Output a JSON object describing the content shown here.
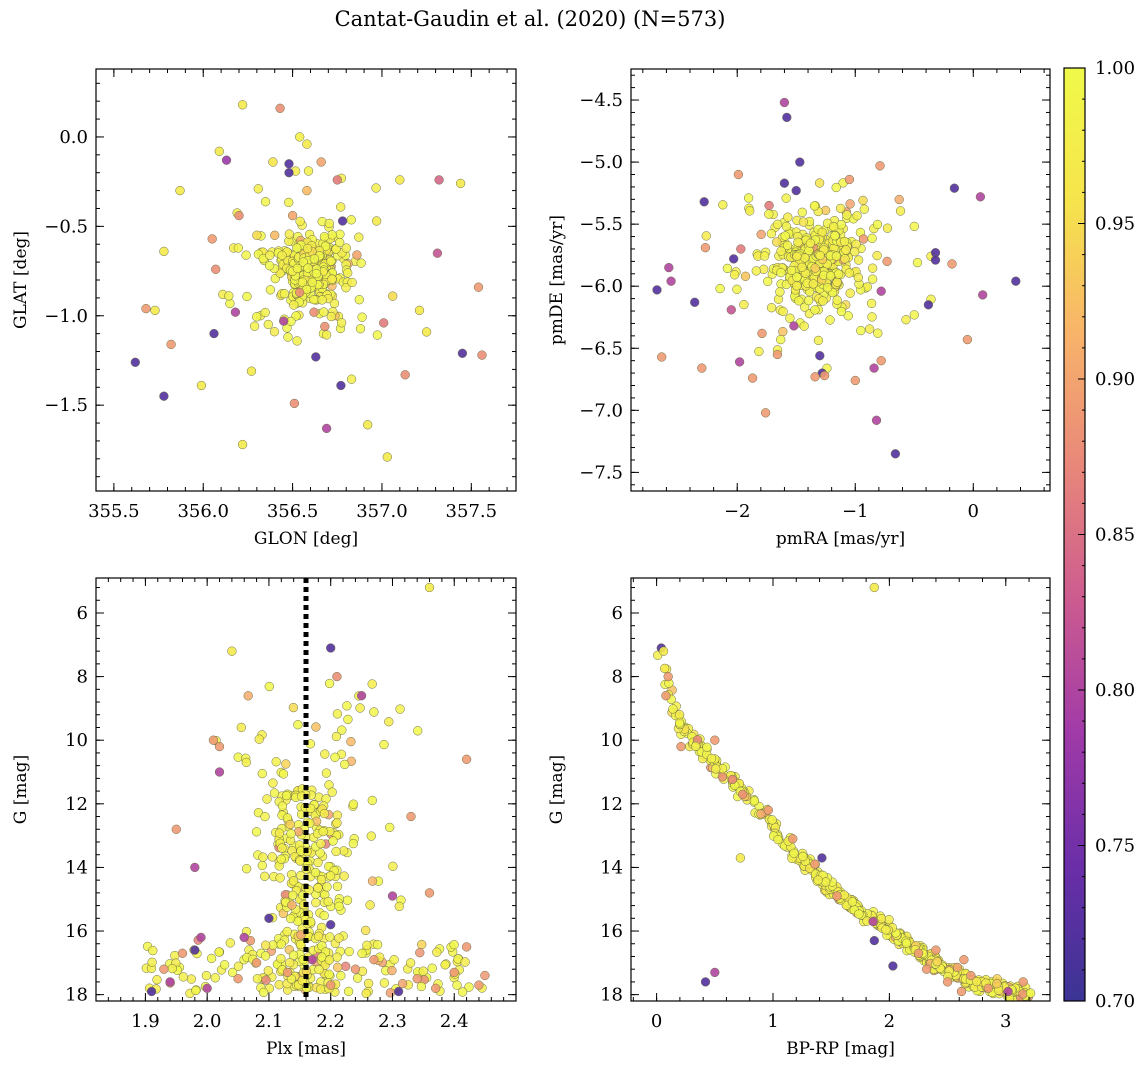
{
  "figure": {
    "title": "Cantat-Gaudin et al. (2020) (N=573)"
  },
  "colorbar": {
    "min": 0.7,
    "max": 1.0,
    "ticks": [
      0.7,
      0.75,
      0.8,
      0.85,
      0.9,
      0.95,
      1.0
    ],
    "tick_labels": [
      "0.70",
      "0.75",
      "0.80",
      "0.85",
      "0.90",
      "0.95",
      "1.00"
    ],
    "colormap": "plasma",
    "stops": [
      "#3b3494",
      "#6a2ea8",
      "#a03aa8",
      "#cc5b90",
      "#e8867a",
      "#f8b36a",
      "#f6e44c",
      "#f0f94a"
    ]
  },
  "colors": {
    "dot_edge": "#6e6e46",
    "axis": "#000000",
    "parallax_line": "#000000"
  },
  "chart_data": [
    {
      "id": "glon-glat",
      "type": "scatter",
      "title": "",
      "xlabel": "GLON [deg]",
      "ylabel": "GLAT [deg]",
      "xlim": [
        355.4,
        357.75
      ],
      "ylim": [
        -1.98,
        0.38
      ],
      "invert_y": false,
      "xticks": [
        355.5,
        356.0,
        356.5,
        357.0,
        357.5
      ],
      "xtick_labels": [
        "355.5",
        "356.0",
        "356.5",
        "357.0",
        "357.5"
      ],
      "yticks": [
        0.0,
        -0.5,
        -1.0,
        -1.5
      ],
      "ytick_labels": [
        "0.0",
        "−0.5",
        "−1.0",
        "−1.5"
      ],
      "center": [
        356.6,
        -0.75
      ],
      "spread_core": [
        0.1,
        0.12
      ],
      "spread_halo": [
        0.3,
        0.3
      ],
      "points": [
        [
          356.22,
          0.18,
          0.97
        ],
        [
          356.43,
          0.16,
          0.88
        ],
        [
          356.54,
          0.0,
          0.98
        ],
        [
          356.09,
          -0.08,
          0.97
        ],
        [
          356.58,
          -0.04,
          0.97
        ],
        [
          356.13,
          -0.13,
          0.78
        ],
        [
          356.39,
          -0.14,
          0.96
        ],
        [
          356.48,
          -0.15,
          0.72
        ],
        [
          356.48,
          -0.2,
          0.72
        ],
        [
          356.66,
          -0.14,
          0.9
        ],
        [
          357.32,
          -0.24,
          0.84
        ],
        [
          355.87,
          -0.3,
          0.97
        ],
        [
          356.58,
          -0.3,
          0.92
        ],
        [
          356.75,
          -0.24,
          0.86
        ],
        [
          357.1,
          -0.24,
          0.97
        ],
        [
          357.44,
          -0.26,
          0.97
        ],
        [
          355.78,
          -0.64,
          0.97
        ],
        [
          356.4,
          -0.55,
          0.92
        ],
        [
          356.78,
          -0.47,
          0.72
        ],
        [
          356.97,
          -0.47,
          0.97
        ],
        [
          357.31,
          -0.65,
          0.82
        ],
        [
          356.05,
          -0.57,
          0.89
        ],
        [
          356.07,
          -0.74,
          0.88
        ],
        [
          357.54,
          -0.84,
          0.89
        ],
        [
          355.68,
          -0.96,
          0.89
        ],
        [
          355.73,
          -0.97,
          0.97
        ],
        [
          355.82,
          -1.16,
          0.89
        ],
        [
          356.06,
          -1.1,
          0.72
        ],
        [
          355.62,
          -1.26,
          0.72
        ],
        [
          355.78,
          -1.45,
          0.72
        ],
        [
          356.63,
          -1.23,
          0.72
        ],
        [
          356.77,
          -1.39,
          0.72
        ],
        [
          357.45,
          -1.21,
          0.72
        ],
        [
          357.56,
          -1.22,
          0.88
        ],
        [
          357.13,
          -1.33,
          0.88
        ],
        [
          356.69,
          -1.63,
          0.8
        ],
        [
          356.22,
          -1.72,
          0.97
        ],
        [
          357.03,
          -1.79,
          0.97
        ],
        [
          356.92,
          -1.61,
          0.97
        ],
        [
          356.51,
          -1.49,
          0.88
        ],
        [
          356.27,
          -1.31,
          0.97
        ],
        [
          355.99,
          -1.39,
          0.97
        ],
        [
          357.01,
          -1.04,
          0.86
        ],
        [
          356.68,
          -1.06,
          0.88
        ],
        [
          356.45,
          -1.03,
          0.8
        ],
        [
          356.18,
          -0.98,
          0.8
        ],
        [
          356.54,
          -0.87,
          0.88
        ],
        [
          356.62,
          -0.98,
          0.88
        ],
        [
          356.5,
          -0.44,
          0.9
        ],
        [
          356.2,
          -0.44,
          0.88
        ],
        [
          357.21,
          -0.97,
          0.97
        ],
        [
          357.25,
          -1.09,
          0.97
        ],
        [
          356.86,
          -0.66,
          0.9
        ],
        [
          357.06,
          -0.89,
          0.95
        ],
        [
          356.3,
          -0.55,
          0.95
        ]
      ]
    },
    {
      "id": "proper-motion",
      "type": "scatter",
      "title": "",
      "xlabel": "pmRA [mas/yr]",
      "ylabel": "pmDE [mas/yr]",
      "xlim": [
        -2.9,
        0.65
      ],
      "ylim": [
        -7.65,
        -4.25
      ],
      "invert_y": false,
      "xticks": [
        -2,
        -1,
        0
      ],
      "xtick_labels": [
        "−2",
        "−1",
        "0"
      ],
      "yticks": [
        -4.5,
        -5.0,
        -5.5,
        -6.0,
        -6.5,
        -7.0,
        -7.5
      ],
      "ytick_labels": [
        "−4.5",
        "−5.0",
        "−5.5",
        "−6.0",
        "−6.5",
        "−7.0",
        "−7.5"
      ],
      "center": [
        -1.32,
        -5.82
      ],
      "spread_core": [
        0.22,
        0.22
      ],
      "spread_halo": [
        0.5,
        0.45
      ],
      "points": [
        [
          -1.6,
          -4.52,
          0.8
        ],
        [
          -1.58,
          -4.64,
          0.72
        ],
        [
          -1.47,
          -5.0,
          0.72
        ],
        [
          -1.5,
          -5.23,
          0.72
        ],
        [
          -1.6,
          -5.17,
          0.72
        ],
        [
          -2.28,
          -5.32,
          0.72
        ],
        [
          -0.16,
          -5.21,
          0.72
        ],
        [
          0.06,
          -5.28,
          0.8
        ],
        [
          -0.32,
          -5.73,
          0.72
        ],
        [
          -0.32,
          -5.79,
          0.72
        ],
        [
          -0.38,
          -6.15,
          0.72
        ],
        [
          0.36,
          -5.96,
          0.72
        ],
        [
          -2.68,
          -6.03,
          0.72
        ],
        [
          -2.36,
          -6.13,
          0.72
        ],
        [
          -2.58,
          -5.85,
          0.8
        ],
        [
          -2.56,
          -5.96,
          0.8
        ],
        [
          0.08,
          -6.07,
          0.8
        ],
        [
          -1.3,
          -6.56,
          0.72
        ],
        [
          -1.28,
          -6.7,
          0.72
        ],
        [
          -0.66,
          -7.35,
          0.72
        ],
        [
          -0.82,
          -7.08,
          0.8
        ],
        [
          -0.84,
          -6.66,
          0.8
        ],
        [
          -0.78,
          -6.04,
          0.8
        ],
        [
          -1.98,
          -6.61,
          0.8
        ],
        [
          -2.03,
          -5.78,
          0.72
        ],
        [
          -2.05,
          -6.19,
          0.82
        ],
        [
          -2.3,
          -6.66,
          0.89
        ],
        [
          -2.64,
          -6.57,
          0.89
        ],
        [
          -2.27,
          -5.69,
          0.89
        ],
        [
          -1.99,
          -5.1,
          0.89
        ],
        [
          -1.76,
          -7.02,
          0.89
        ],
        [
          -1.34,
          -6.73,
          0.89
        ],
        [
          -1.26,
          -6.72,
          0.89
        ],
        [
          -1.0,
          -6.76,
          0.89
        ],
        [
          -0.78,
          -6.6,
          0.89
        ],
        [
          -0.18,
          -5.82,
          0.89
        ],
        [
          -0.05,
          -6.43,
          0.89
        ],
        [
          -1.05,
          -5.14,
          0.89
        ],
        [
          -0.79,
          -5.03,
          0.89
        ],
        [
          -0.93,
          -5.62,
          0.89
        ],
        [
          -1.79,
          -6.38,
          0.89
        ],
        [
          -1.66,
          -6.55,
          0.89
        ],
        [
          -1.52,
          -6.32,
          0.8
        ],
        [
          -1.87,
          -6.74,
          0.89
        ],
        [
          -1.73,
          -5.35,
          0.86
        ],
        [
          -1.97,
          -5.7,
          0.86
        ],
        [
          -0.73,
          -5.8,
          0.89
        ],
        [
          -1.93,
          -5.92,
          0.93
        ]
      ]
    },
    {
      "id": "parallax-g",
      "type": "scatter",
      "title": "",
      "xlabel": "Plx [mas]",
      "ylabel": "G [mag]",
      "xlim": [
        1.82,
        2.5
      ],
      "ylim": [
        4.9,
        18.2
      ],
      "invert_y": true,
      "xticks": [
        1.9,
        2.0,
        2.1,
        2.2,
        2.3,
        2.4
      ],
      "xtick_labels": [
        "1.9",
        "2.0",
        "2.1",
        "2.2",
        "2.3",
        "2.4"
      ],
      "yticks": [
        6,
        8,
        10,
        12,
        14,
        16,
        18
      ],
      "ytick_labels": [
        "6",
        "8",
        "10",
        "12",
        "14",
        "16",
        "18"
      ],
      "vline": 2.16,
      "points": [
        [
          2.36,
          5.2,
          0.97
        ],
        [
          2.04,
          7.2,
          0.97
        ],
        [
          2.2,
          7.1,
          0.72
        ],
        [
          2.21,
          8.0,
          0.88
        ],
        [
          2.25,
          8.6,
          0.8
        ],
        [
          2.01,
          10.0,
          0.89
        ],
        [
          2.02,
          10.2,
          0.89
        ],
        [
          2.02,
          11.0,
          0.8
        ],
        [
          2.42,
          10.6,
          0.89
        ],
        [
          1.95,
          12.8,
          0.89
        ],
        [
          2.33,
          12.4,
          0.89
        ],
        [
          1.98,
          14.0,
          0.8
        ],
        [
          2.3,
          14.9,
          0.8
        ],
        [
          2.36,
          14.8,
          0.89
        ],
        [
          2.07,
          16.3,
          0.89
        ],
        [
          2.06,
          16.2,
          0.8
        ],
        [
          1.99,
          16.2,
          0.8
        ],
        [
          1.98,
          16.6,
          0.72
        ],
        [
          2.1,
          15.6,
          0.72
        ],
        [
          2.2,
          15.8,
          0.72
        ],
        [
          1.93,
          17.2,
          0.89
        ],
        [
          1.91,
          17.9,
          0.72
        ],
        [
          2.0,
          17.8,
          0.8
        ],
        [
          2.2,
          17.7,
          0.89
        ],
        [
          2.31,
          17.9,
          0.72
        ],
        [
          2.42,
          16.5,
          0.89
        ],
        [
          2.44,
          17.7,
          0.89
        ],
        [
          1.96,
          16.7,
          0.89
        ],
        [
          2.24,
          17.2,
          0.89
        ],
        [
          2.13,
          17.3,
          0.89
        ],
        [
          2.37,
          17.8,
          0.89
        ],
        [
          2.08,
          17.0,
          0.89
        ],
        [
          1.94,
          17.6,
          0.8
        ],
        [
          2.27,
          16.9,
          0.89
        ],
        [
          2.34,
          17.5,
          0.89
        ],
        [
          2.17,
          16.9,
          0.8
        ],
        [
          2.05,
          17.5,
          0.89
        ],
        [
          2.4,
          17.3,
          0.89
        ]
      ]
    },
    {
      "id": "cmd",
      "type": "scatter",
      "title": "",
      "xlabel": "BP-RP [mag]",
      "ylabel": "G [mag]",
      "xlim": [
        -0.22,
        3.38
      ],
      "ylim": [
        4.9,
        18.2
      ],
      "invert_y": true,
      "xticks": [
        0,
        1,
        2,
        3
      ],
      "xtick_labels": [
        "0",
        "1",
        "2",
        "3"
      ],
      "yticks": [
        6,
        8,
        10,
        12,
        14,
        16,
        18
      ],
      "ytick_labels": [
        "6",
        "8",
        "10",
        "12",
        "14",
        "16",
        "18"
      ],
      "sequence": [
        [
          0.0,
          7.0
        ],
        [
          0.1,
          8.3
        ],
        [
          0.2,
          9.5
        ],
        [
          0.4,
          10.4
        ],
        [
          0.6,
          11.1
        ],
        [
          0.8,
          11.8
        ],
        [
          1.0,
          12.7
        ],
        [
          1.2,
          13.6
        ],
        [
          1.4,
          14.3
        ],
        [
          1.6,
          15.0
        ],
        [
          1.8,
          15.5
        ],
        [
          2.0,
          16.0
        ],
        [
          2.2,
          16.5
        ],
        [
          2.4,
          17.0
        ],
        [
          2.6,
          17.4
        ],
        [
          2.8,
          17.7
        ],
        [
          3.0,
          17.9
        ],
        [
          3.2,
          18.0
        ]
      ],
      "points": [
        [
          1.87,
          5.2,
          0.97
        ],
        [
          0.04,
          7.1,
          0.72
        ],
        [
          0.06,
          7.2,
          0.97
        ],
        [
          0.1,
          8.0,
          0.89
        ],
        [
          0.08,
          8.6,
          0.89
        ],
        [
          0.5,
          10.0,
          0.89
        ],
        [
          0.21,
          10.2,
          0.89
        ],
        [
          0.74,
          11.7,
          0.88
        ],
        [
          1.42,
          13.7,
          0.72
        ],
        [
          0.72,
          13.7,
          0.97
        ],
        [
          1.86,
          15.7,
          0.8
        ],
        [
          1.87,
          16.3,
          0.72
        ],
        [
          2.03,
          17.1,
          0.72
        ],
        [
          0.5,
          17.3,
          0.8
        ],
        [
          0.42,
          17.6,
          0.72
        ],
        [
          2.25,
          16.7,
          0.89
        ],
        [
          2.5,
          17.6,
          0.89
        ],
        [
          2.62,
          17.9,
          0.89
        ],
        [
          2.85,
          17.8,
          0.89
        ],
        [
          3.15,
          17.6,
          0.89
        ],
        [
          1.36,
          13.9,
          0.89
        ],
        [
          1.55,
          14.9,
          0.89
        ],
        [
          2.4,
          16.6,
          0.89
        ],
        [
          2.64,
          16.9,
          0.89
        ],
        [
          1.17,
          13.1,
          0.89
        ],
        [
          0.96,
          12.2,
          0.89
        ],
        [
          2.7,
          17.4,
          0.89
        ],
        [
          2.32,
          17.2,
          0.89
        ],
        [
          3.02,
          17.9,
          0.8
        ]
      ]
    }
  ]
}
